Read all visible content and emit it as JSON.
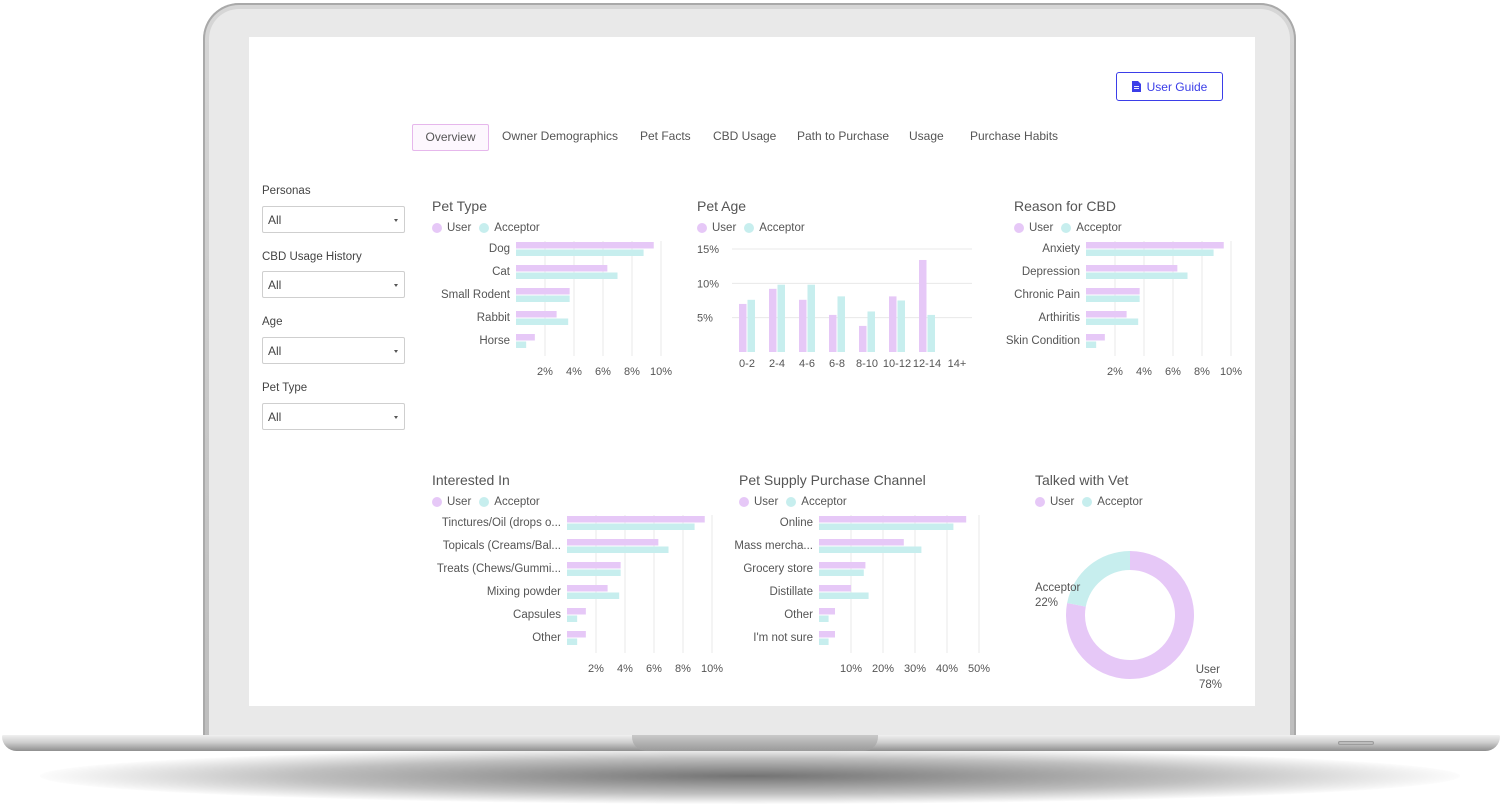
{
  "colors": {
    "user": "#e6c8f7",
    "acceptor": "#c7eeee",
    "accent": "#3b3ee8",
    "grid": "#e8e8e8"
  },
  "header": {
    "user_guide_label": "User Guide",
    "user_guide_icon": "document-icon"
  },
  "tabs": [
    {
      "label": "Overview",
      "active": true
    },
    {
      "label": "Owner Demographics",
      "active": false
    },
    {
      "label": "Pet Facts",
      "active": false
    },
    {
      "label": "CBD Usage",
      "active": false
    },
    {
      "label": "Path to Purchase",
      "active": false
    },
    {
      "label": "Usage",
      "active": false
    },
    {
      "label": "Purchase Habits",
      "active": false
    }
  ],
  "filters": [
    {
      "label": "Personas",
      "value": "All"
    },
    {
      "label": "CBD Usage History",
      "value": "All"
    },
    {
      "label": "Age",
      "value": "All"
    },
    {
      "label": "Pet Type",
      "value": "All"
    }
  ],
  "legend": {
    "user": "User",
    "acceptor": "Acceptor"
  },
  "chart_data": [
    {
      "type": "bar",
      "orientation": "horizontal",
      "title": "Pet Type",
      "categories": [
        "Dog",
        "Cat",
        "Small Rodent",
        "Rabbit",
        "Horse"
      ],
      "series": [
        {
          "name": "User",
          "values": [
            9.5,
            6.3,
            3.7,
            2.8,
            1.3
          ]
        },
        {
          "name": "Acceptor",
          "values": [
            8.8,
            7.0,
            3.7,
            3.6,
            0.7
          ]
        }
      ],
      "ticks": [
        "2%",
        "4%",
        "6%",
        "8%",
        "10%"
      ],
      "xlim": [
        0,
        10
      ]
    },
    {
      "type": "bar",
      "orientation": "vertical",
      "title": "Pet Age",
      "categories": [
        "0-2",
        "2-4",
        "4-6",
        "6-8",
        "8-10",
        "10-12",
        "12-14",
        "14+"
      ],
      "series": [
        {
          "name": "User",
          "values": [
            7.0,
            9.2,
            7.6,
            5.4,
            3.8,
            8.1,
            13.4,
            0
          ]
        },
        {
          "name": "Acceptor",
          "values": [
            7.6,
            9.8,
            9.8,
            8.1,
            5.9,
            7.5,
            5.4,
            0
          ]
        }
      ],
      "ticks": [
        "5%",
        "10%",
        "15%"
      ],
      "ylim": [
        0,
        15
      ]
    },
    {
      "type": "bar",
      "orientation": "horizontal",
      "title": "Reason for CBD",
      "categories": [
        "Anxiety",
        "Depression",
        "Chronic Pain",
        "Arthiritis",
        "Skin Condition"
      ],
      "series": [
        {
          "name": "User",
          "values": [
            9.5,
            6.3,
            3.7,
            2.8,
            1.3
          ]
        },
        {
          "name": "Acceptor",
          "values": [
            8.8,
            7.0,
            3.7,
            3.6,
            0.7
          ]
        }
      ],
      "ticks": [
        "2%",
        "4%",
        "6%",
        "8%",
        "10%"
      ],
      "xlim": [
        0,
        10
      ]
    },
    {
      "type": "bar",
      "orientation": "horizontal",
      "title": "Interested In",
      "categories": [
        "Tinctures/Oil (drops o...",
        "Topicals (Creams/Bal...",
        "Treats (Chews/Gummi...",
        "Mixing powder",
        "Capsules",
        "Other"
      ],
      "series": [
        {
          "name": "User",
          "values": [
            9.5,
            6.3,
            3.7,
            2.8,
            1.3,
            1.3
          ]
        },
        {
          "name": "Acceptor",
          "values": [
            8.8,
            7.0,
            3.7,
            3.6,
            0.7,
            0.7
          ]
        }
      ],
      "ticks": [
        "2%",
        "4%",
        "6%",
        "8%",
        "10%"
      ],
      "xlim": [
        0,
        10
      ]
    },
    {
      "type": "bar",
      "orientation": "horizontal",
      "title": "Pet Supply Purchase Channel",
      "categories": [
        "Online",
        "Mass mercha...",
        "Grocery store",
        "Distillate",
        "Other",
        "I'm not sure"
      ],
      "series": [
        {
          "name": "User",
          "values": [
            46,
            26.5,
            14.5,
            10,
            5,
            5
          ]
        },
        {
          "name": "Acceptor",
          "values": [
            42,
            32,
            14,
            15.5,
            3,
            3
          ]
        }
      ],
      "ticks": [
        "10%",
        "20%",
        "30%",
        "40%",
        "50%"
      ],
      "xlim": [
        0,
        50
      ]
    },
    {
      "type": "pie",
      "variant": "donut",
      "title": "Talked with Vet",
      "slices": [
        {
          "label": "User",
          "value": 78,
          "display": "78%"
        },
        {
          "label": "Acceptor",
          "value": 22,
          "display": "22%"
        }
      ]
    }
  ]
}
